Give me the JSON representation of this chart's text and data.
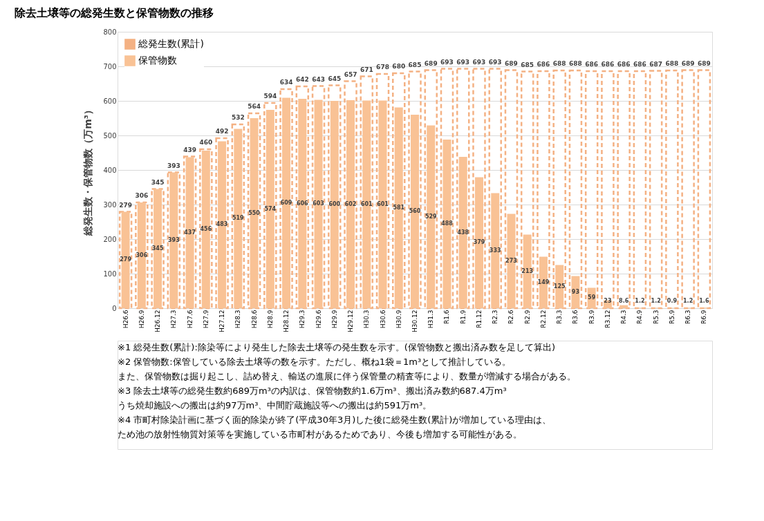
{
  "chart_data": {
    "type": "bar",
    "title": "除去土壌等の総発生数と保管物数の推移",
    "ylabel": "総発生数・保管物数（万m³）",
    "categories": [
      "H26.6",
      "H26.9",
      "H26.12",
      "H27.3",
      "H27.6",
      "H27.9",
      "H27.12",
      "H28.3",
      "H28.6",
      "H28.9",
      "H28.12",
      "H29.3",
      "H29.6",
      "H29.9",
      "H29.12",
      "H30.3",
      "H30.6",
      "H30.9",
      "H30.12",
      "H31.3",
      "R1.6",
      "R1.9",
      "R1.12",
      "R2.3",
      "R2.6",
      "R2.9",
      "R2.12",
      "R3.3",
      "R3.6",
      "R3.9",
      "R3.12",
      "R4.3",
      "R4.9",
      "R5.3",
      "R5.9",
      "R6.3",
      "R6.9"
    ],
    "series": [
      {
        "name": "総発生数(累計)",
        "color": "#f4b183",
        "line_style": "dashed",
        "values": [
          279,
          306,
          345,
          393,
          439,
          460,
          492,
          532,
          564,
          594,
          634,
          642,
          643,
          645,
          657,
          671,
          678,
          680,
          685,
          689,
          693,
          693,
          693,
          693,
          689,
          685,
          686,
          688,
          688,
          686,
          686,
          686,
          686,
          687,
          688,
          689,
          689
        ]
      },
      {
        "name": "保管物数",
        "color": "#f9c295",
        "values": [
          279,
          306,
          345,
          393,
          437,
          456,
          483,
          519,
          550,
          574,
          609,
          606,
          603,
          600,
          602,
          601,
          601,
          581,
          560,
          529,
          488,
          438,
          379,
          333,
          273,
          213,
          149,
          125,
          93,
          59,
          23,
          8.6,
          1.2,
          1.2,
          0.9,
          1.2,
          1.6
        ]
      }
    ],
    "ylim": [
      0,
      800
    ],
    "yticks": [
      0,
      100,
      200,
      300,
      400,
      500,
      600,
      700,
      800
    ],
    "grid": "y",
    "legend": "top left",
    "data_labels": true,
    "annotations": [
      "※1  総発生数(累計):除染等により発生した除去土壌等の発生数を示す。(保管物数と搬出済み数を足して算出)",
      "※2  保管物数:保管している除去土壌等の数を示す。ただし、概ね1袋＝1m³として推計している。",
      "また、保管物数は掘り起こし、詰め替え、輸送の進展に伴う保管量の精査等により、数量が増減する場合がある。",
      "※3  除去土壌等の総発生数約689万m³の内訳は、保管物数約1.6万m³、搬出済み数約687.4万m³",
      "うち焼却施設への搬出は約97万m³、中間貯蔵施設等への搬出は約591万m³。",
      "※4  市町村除染計画に基づく面的除染が終了(平成30年3月)した後に総発生数(累計)が増加している理由は、",
      "ため池の放射性物質対策等を実施している市町村があるためであり、今後も増加する可能性がある。"
    ]
  }
}
